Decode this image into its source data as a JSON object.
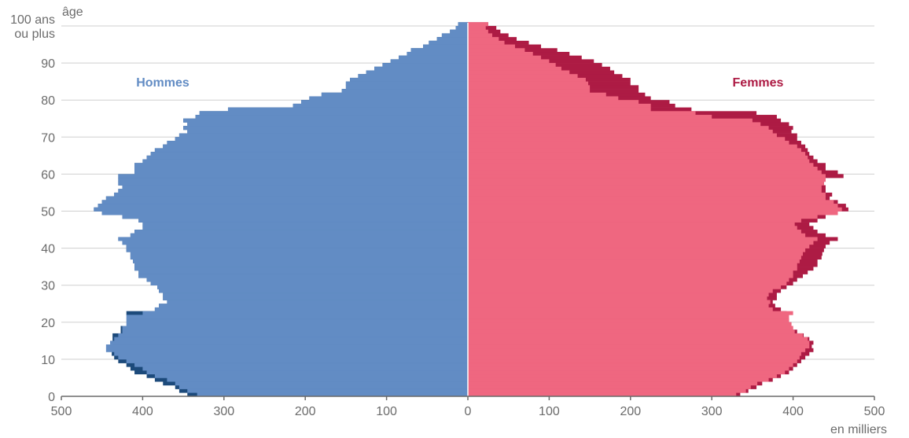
{
  "chart_data": {
    "type": "bar",
    "orientation": "horizontal",
    "subtype": "population-pyramid",
    "ylabel": "âge",
    "xlabel": "en milliers",
    "top_age_label": [
      "100 ans",
      "ou plus"
    ],
    "y_ticks": [
      0,
      10,
      20,
      30,
      40,
      50,
      60,
      70,
      80,
      90
    ],
    "x_ticks": [
      500,
      400,
      300,
      200,
      100,
      0,
      100,
      200,
      300,
      400,
      500
    ],
    "xlim": [
      -500,
      500
    ],
    "ylim": [
      0,
      100
    ],
    "grid": true,
    "colors": {
      "men": "#628cc4",
      "men_excess": "#1c4a7b",
      "women": "#ef6780",
      "women_excess": "#ad1b44",
      "grid": "#cfcfcf",
      "axis": "#6b6b6b"
    },
    "series": [
      {
        "name": "Hommes",
        "values": [
          333,
          345,
          355,
          360,
          370,
          385,
          395,
          400,
          410,
          420,
          430,
          435,
          445,
          445,
          440,
          435,
          430,
          425,
          425,
          420,
          420,
          420,
          400,
          385,
          380,
          370,
          375,
          375,
          380,
          382,
          390,
          395,
          405,
          405,
          410,
          410,
          412,
          415,
          415,
          420,
          420,
          425,
          430,
          415,
          410,
          400,
          400,
          405,
          425,
          450,
          460,
          455,
          450,
          445,
          435,
          430,
          425,
          430,
          430,
          430,
          410,
          410,
          410,
          400,
          395,
          390,
          385,
          375,
          370,
          360,
          355,
          345,
          350,
          345,
          350,
          335,
          330,
          295,
          215,
          205,
          195,
          180,
          155,
          150,
          150,
          145,
          135,
          125,
          115,
          105,
          95,
          85,
          75,
          70,
          55,
          48,
          38,
          32,
          22,
          15,
          12
        ]
      },
      {
        "name": "",
        "values": [
          345,
          355,
          360,
          375,
          385,
          395,
          410,
          415,
          420,
          430,
          435,
          438,
          435,
          437,
          437,
          437,
          437,
          427,
          427,
          417,
          417,
          417,
          420,
          385,
          380,
          370,
          375,
          375,
          380,
          382,
          390,
          395,
          405,
          405,
          410,
          410,
          412,
          415,
          415,
          420,
          420,
          425,
          430,
          415,
          410,
          400,
          400,
          405,
          425,
          450,
          460,
          455,
          450,
          445,
          435,
          430,
          425,
          430,
          430,
          430,
          410,
          410,
          410,
          400,
          395,
          390,
          385,
          375,
          370,
          360,
          355,
          345,
          350,
          345,
          350,
          335,
          330,
          295,
          215,
          205,
          195,
          180,
          155,
          150,
          150,
          145,
          135,
          125,
          115,
          105,
          95,
          85,
          75,
          70,
          55,
          48,
          38,
          32,
          22,
          15,
          12
        ]
      },
      {
        "name": "Femmes",
        "values": [
          330,
          342,
          348,
          356,
          370,
          380,
          390,
          395,
          400,
          405,
          408,
          410,
          415,
          420,
          420,
          418,
          412,
          402,
          400,
          398,
          395,
          395,
          400,
          375,
          370,
          372,
          368,
          370,
          375,
          385,
          392,
          395,
          400,
          400,
          405,
          405,
          408,
          410,
          412,
          415,
          420,
          425,
          430,
          415,
          410,
          405,
          402,
          410,
          430,
          455,
          460,
          455,
          450,
          440,
          440,
          435,
          435,
          438,
          440,
          440,
          435,
          430,
          425,
          420,
          418,
          415,
          410,
          405,
          395,
          390,
          380,
          375,
          370,
          360,
          350,
          300,
          280,
          225,
          225,
          210,
          185,
          170,
          150,
          150,
          148,
          145,
          135,
          125,
          115,
          108,
          100,
          90,
          80,
          70,
          58,
          45,
          38,
          30,
          25,
          22,
          25
        ]
      },
      {
        "name": "",
        "values": [
          335,
          345,
          355,
          362,
          375,
          385,
          395,
          400,
          405,
          410,
          415,
          420,
          425,
          423,
          425,
          420,
          413,
          405,
          400,
          398,
          395,
          393,
          392,
          385,
          378,
          375,
          380,
          380,
          385,
          392,
          400,
          405,
          412,
          418,
          425,
          430,
          430,
          435,
          436,
          438,
          440,
          445,
          455,
          440,
          430,
          425,
          420,
          430,
          440,
          455,
          468,
          465,
          455,
          445,
          448,
          440,
          440,
          438,
          440,
          462,
          455,
          440,
          440,
          430,
          425,
          420,
          418,
          415,
          410,
          405,
          405,
          398,
          400,
          395,
          385,
          380,
          355,
          275,
          255,
          248,
          225,
          218,
          210,
          210,
          200,
          200,
          190,
          180,
          175,
          165,
          155,
          140,
          125,
          110,
          90,
          75,
          60,
          50,
          40,
          35,
          25
        ]
      }
    ]
  }
}
